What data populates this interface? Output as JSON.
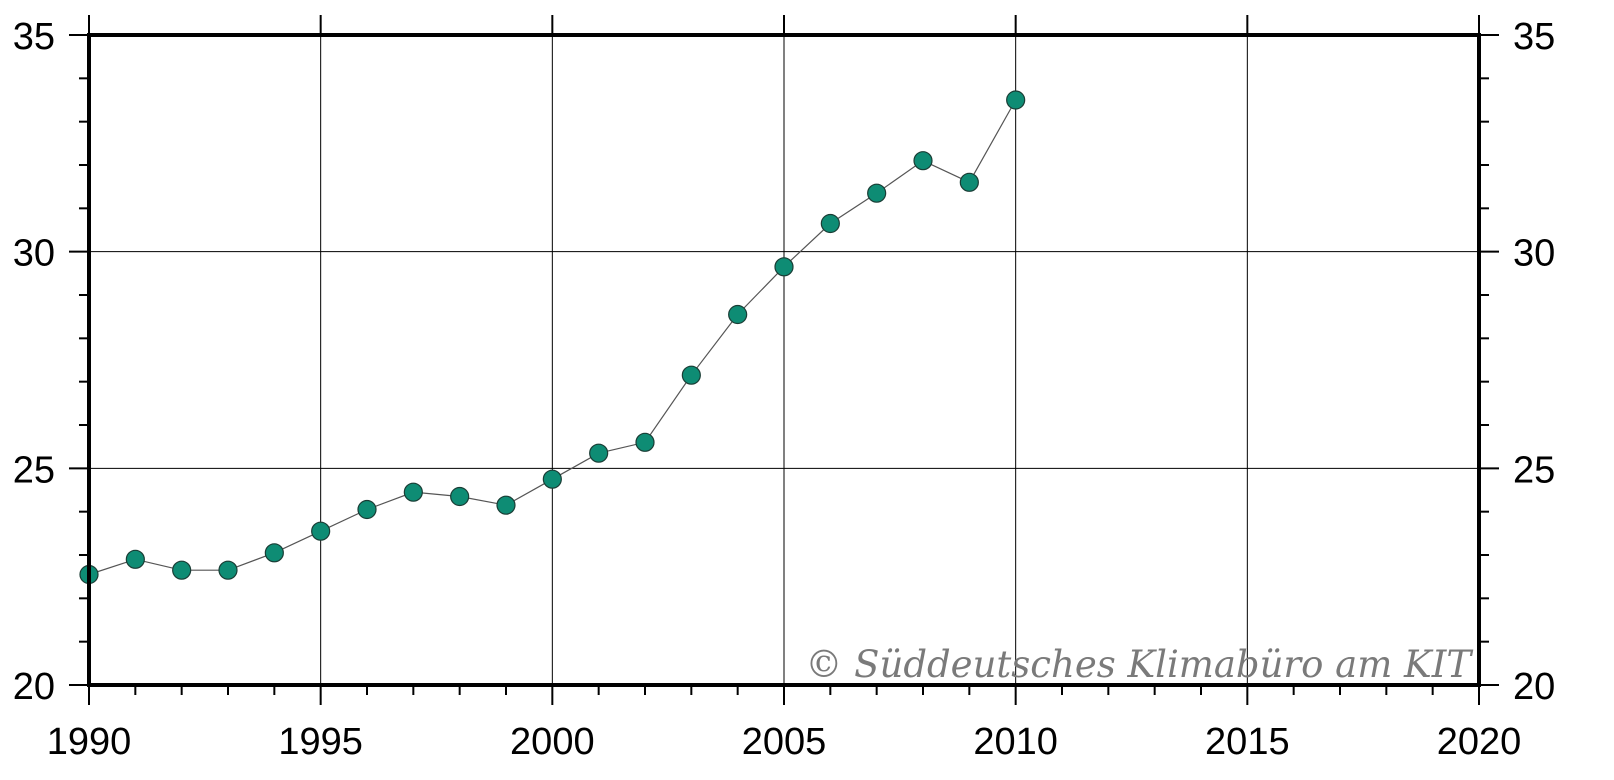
{
  "chart_data": {
    "type": "line",
    "title": "",
    "xlabel": "",
    "ylabel": "",
    "xlim": [
      1990,
      2020
    ],
    "ylim": [
      20,
      35
    ],
    "x_ticks": [
      1990,
      1995,
      2000,
      2005,
      2010,
      2015,
      2020
    ],
    "y_ticks": [
      20,
      25,
      30,
      35
    ],
    "y_minor_step": 1,
    "x_minor_step": 1,
    "grid": true,
    "right_axis_mirrored": true,
    "series": [
      {
        "x": [
          1990,
          1991,
          1992,
          1993,
          1994,
          1995,
          1996,
          1997,
          1998,
          1999,
          2000,
          2001,
          2002,
          2003,
          2004,
          2005,
          2006,
          2007,
          2008,
          2009,
          2010
        ],
        "values": [
          22.55,
          22.9,
          22.65,
          22.65,
          23.05,
          23.55,
          24.05,
          24.45,
          24.35,
          24.15,
          24.75,
          25.35,
          25.6,
          27.15,
          28.55,
          29.65,
          30.65,
          31.35,
          32.1,
          31.6,
          33.5
        ],
        "color": "#0e8c74",
        "line_color": "#555555"
      }
    ],
    "annotation": "© Süddeutsches Klimabüro am KIT"
  }
}
